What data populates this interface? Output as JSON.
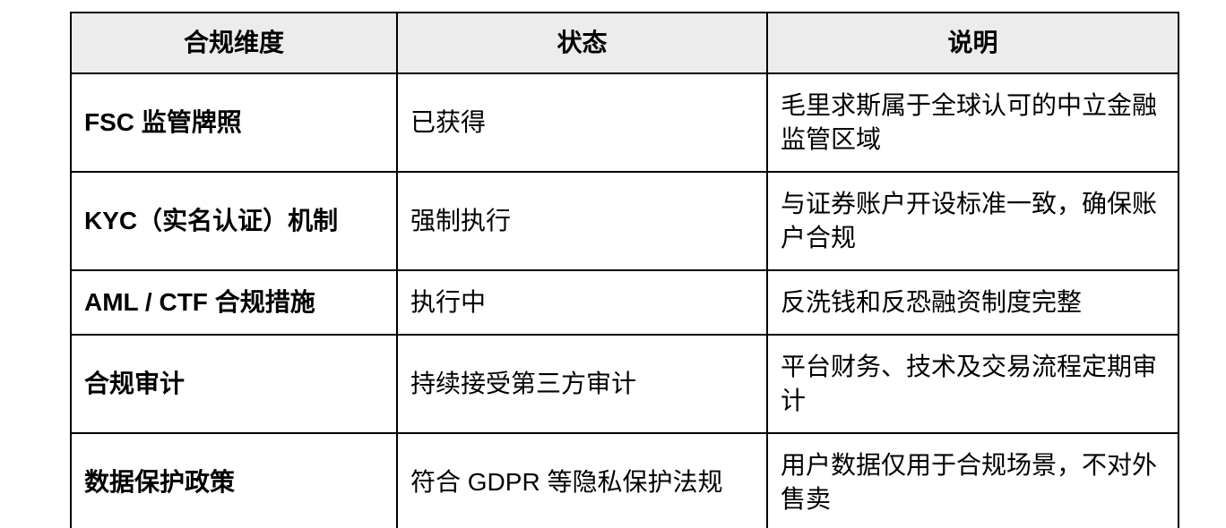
{
  "page": {
    "background": "#ffffff"
  },
  "table": {
    "columns": [
      {
        "key": "dimension",
        "label": "合规维度"
      },
      {
        "key": "status",
        "label": "状态"
      },
      {
        "key": "description",
        "label": "说明"
      }
    ],
    "rows": [
      {
        "dimension": "FSC 监管牌照",
        "status": "已获得",
        "description": "毛里求斯属于全球认可的中立金融监管区域"
      },
      {
        "dimension": "KYC（实名认证）机制",
        "status": "强制执行",
        "description": "与证券账户开设标准一致，确保账户合规"
      },
      {
        "dimension": "AML / CTF 合规措施",
        "status": "执行中",
        "description": "反洗钱和反恐融资制度完整"
      },
      {
        "dimension": "合规审计",
        "status": "持续接受第三方审计",
        "description": "平台财务、技术及交易流程定期审计"
      },
      {
        "dimension": "数据保护政策",
        "status": "符合 GDPR 等隐私保护法规",
        "description": "用户数据仅用于合规场景，不对外售卖"
      }
    ],
    "style": {
      "header_bg": "#ececec",
      "border_color": "#000000",
      "text_color": "#000000"
    }
  }
}
